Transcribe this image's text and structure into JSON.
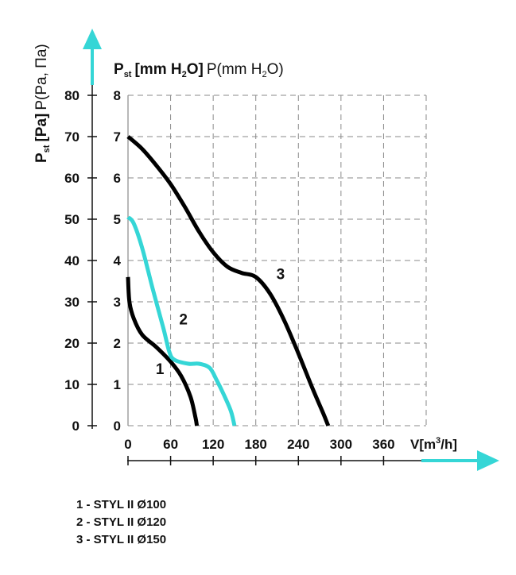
{
  "chart_data": {
    "type": "line",
    "title_y": {
      "main": "P",
      "main_sub": "st",
      "bold_part": "[mm H",
      "bold_sub": "2",
      "bold_end": "O]",
      "normal_part": "P(mm H",
      "normal_sub": "2",
      "normal_end": "O)"
    },
    "ylabel_left": {
      "main": "P",
      "main_sub": "st",
      "bold_part": "[Pa]",
      "normal_part": "P(Pa, Па)"
    },
    "xlabel": {
      "main": "V[m",
      "sup": "3",
      "end": "/h]"
    },
    "x_ticks": [
      "0",
      "60",
      "120",
      "180",
      "240",
      "300",
      "360"
    ],
    "y_ticks_pa": [
      "0",
      "10",
      "20",
      "30",
      "40",
      "50",
      "60",
      "70",
      "80"
    ],
    "y_ticks_mm": [
      "0",
      "1",
      "2",
      "3",
      "4",
      "5",
      "6",
      "7",
      "8"
    ],
    "xlim": [
      0,
      420
    ],
    "ylim_mm": [
      0,
      8
    ],
    "grid": true,
    "series": [
      {
        "name": "1",
        "color": "#000000",
        "points": [
          [
            0,
            3.6
          ],
          [
            2,
            3.0
          ],
          [
            8,
            2.6
          ],
          [
            20,
            2.2
          ],
          [
            40,
            1.9
          ],
          [
            60,
            1.55
          ],
          [
            75,
            1.2
          ],
          [
            88,
            0.7
          ],
          [
            95,
            0.2
          ],
          [
            97,
            0.0
          ]
        ]
      },
      {
        "name": "2",
        "color": "#35d6d6",
        "points": [
          [
            0,
            5.05
          ],
          [
            8,
            4.9
          ],
          [
            20,
            4.3
          ],
          [
            35,
            3.3
          ],
          [
            50,
            2.35
          ],
          [
            58,
            1.8
          ],
          [
            65,
            1.6
          ],
          [
            85,
            1.5
          ],
          [
            100,
            1.5
          ],
          [
            115,
            1.4
          ],
          [
            125,
            1.1
          ],
          [
            135,
            0.75
          ],
          [
            145,
            0.35
          ],
          [
            150,
            0.0
          ]
        ]
      },
      {
        "name": "3",
        "color": "#000000",
        "points": [
          [
            0,
            7.0
          ],
          [
            20,
            6.7
          ],
          [
            40,
            6.3
          ],
          [
            60,
            5.85
          ],
          [
            80,
            5.3
          ],
          [
            100,
            4.7
          ],
          [
            120,
            4.2
          ],
          [
            140,
            3.85
          ],
          [
            160,
            3.7
          ],
          [
            180,
            3.6
          ],
          [
            200,
            3.2
          ],
          [
            220,
            2.55
          ],
          [
            240,
            1.75
          ],
          [
            260,
            0.9
          ],
          [
            275,
            0.3
          ],
          [
            282,
            0.0
          ]
        ]
      }
    ],
    "curve_labels": [
      {
        "text": "1",
        "x": 45,
        "y": 1.25
      },
      {
        "text": "2",
        "x": 78,
        "y": 2.45
      },
      {
        "text": "3",
        "x": 215,
        "y": 3.55
      }
    ]
  },
  "legend": [
    "1 - STYL II Ø100",
    "2 - STYL II Ø120",
    "3 - STYL II Ø150"
  ],
  "accent_color": "#35d6d6"
}
